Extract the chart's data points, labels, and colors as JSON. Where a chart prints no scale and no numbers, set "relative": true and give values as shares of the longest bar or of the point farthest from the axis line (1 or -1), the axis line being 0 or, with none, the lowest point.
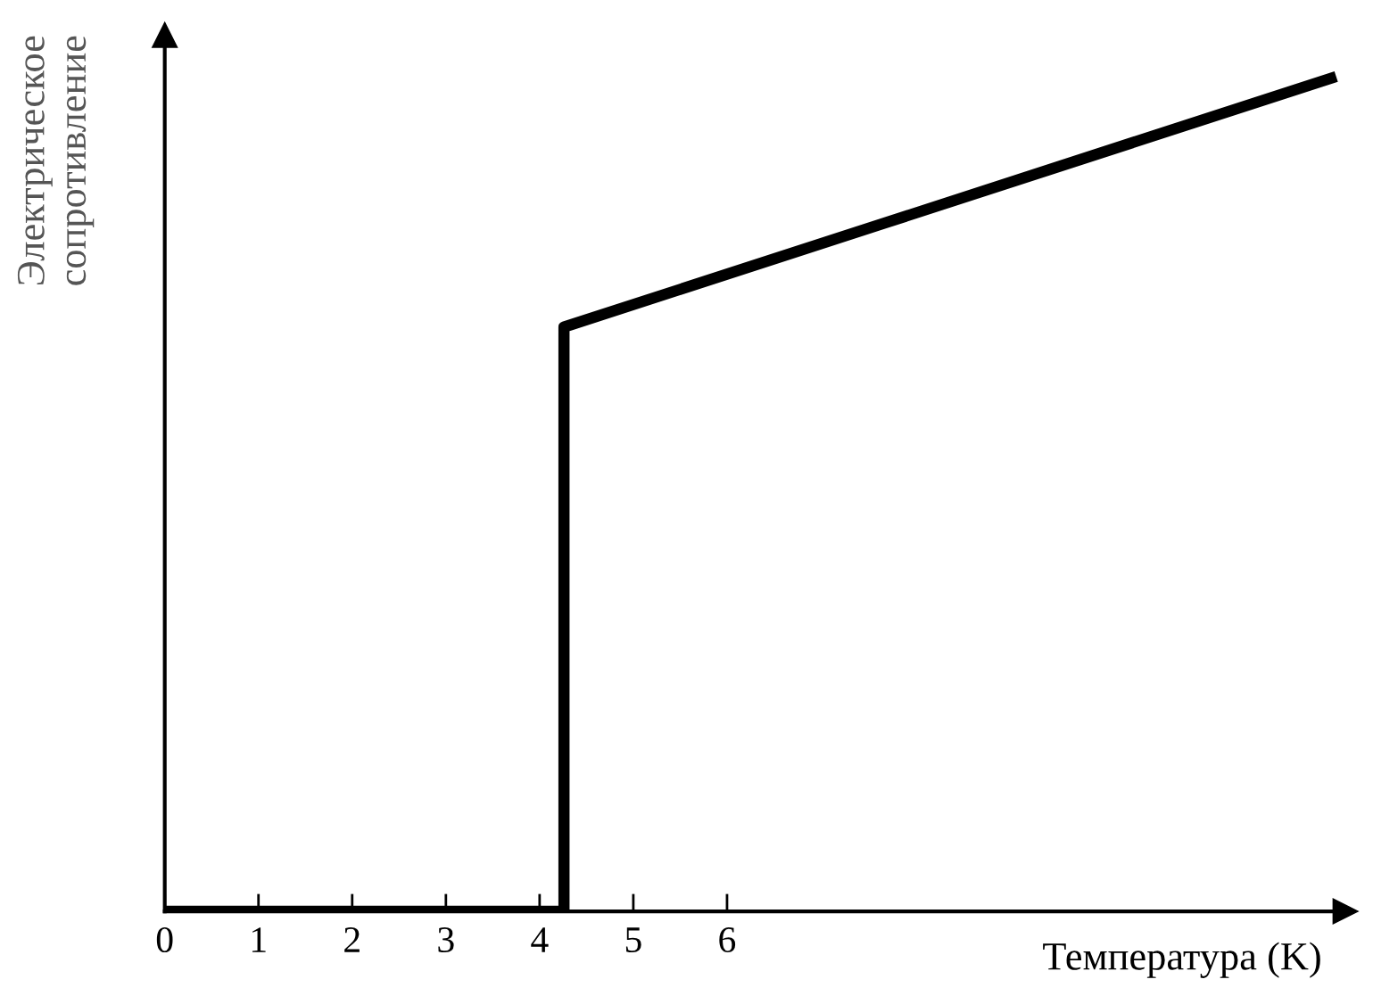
{
  "chart_data": {
    "type": "line",
    "relative": true,
    "xlabel": "Температура (K)",
    "ylabel": "Электрическое\nсопротивление",
    "series": [
      {
        "color": "#000000",
        "x": [
          0,
          4.26,
          4.26,
          12.5
        ],
        "values": [
          0,
          0,
          0.7,
          1.0
        ]
      }
    ],
    "xlim": [
      0,
      12.6
    ],
    "xticks": [
      0,
      1,
      2,
      3,
      4,
      5,
      6
    ],
    "grid": false,
    "legend": false,
    "marker": "none",
    "line_style": "solid"
  }
}
